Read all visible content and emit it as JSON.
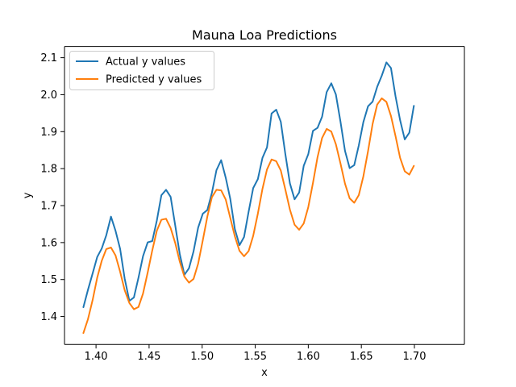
{
  "chart_data": {
    "type": "line",
    "title": "Mauna Loa Predictions",
    "xlabel": "x",
    "ylabel": "y",
    "xlim": [
      1.3703,
      1.7471
    ],
    "ylim": [
      1.3245,
      2.1305
    ],
    "xticks": [
      1.4,
      1.45,
      1.5,
      1.55,
      1.6,
      1.65,
      1.7
    ],
    "xtick_labels": [
      "1.40",
      "1.45",
      "1.50",
      "1.55",
      "1.60",
      "1.65",
      "1.70"
    ],
    "yticks": [
      1.4,
      1.5,
      1.6,
      1.7,
      1.8,
      1.9,
      2.0,
      2.1
    ],
    "ytick_labels": [
      "1.4",
      "1.5",
      "1.6",
      "1.7",
      "1.8",
      "1.9",
      "2.0",
      "2.1"
    ],
    "legend_position": "upper-left",
    "grid": false,
    "colors": {
      "actual": "#1f77b4",
      "predicted": "#ff7f0e"
    },
    "series": [
      {
        "name": "Actual y values",
        "color": "#1f77b4",
        "points": [
          [
            1.3881,
            1.4253
          ],
          [
            1.3924,
            1.472
          ],
          [
            1.3968,
            1.5164
          ],
          [
            1.4011,
            1.5608
          ],
          [
            1.4054,
            1.5841
          ],
          [
            1.4097,
            1.6201
          ],
          [
            1.4141,
            1.6702
          ],
          [
            1.4184,
            1.6317
          ],
          [
            1.4227,
            1.583
          ],
          [
            1.427,
            1.5026
          ],
          [
            1.4314,
            1.4424
          ],
          [
            1.4357,
            1.4515
          ],
          [
            1.44,
            1.505
          ],
          [
            1.4443,
            1.5634
          ],
          [
            1.4487,
            1.6006
          ],
          [
            1.453,
            1.6041
          ],
          [
            1.4573,
            1.6596
          ],
          [
            1.4616,
            1.7281
          ],
          [
            1.466,
            1.7427
          ],
          [
            1.4703,
            1.7236
          ],
          [
            1.4746,
            1.6468
          ],
          [
            1.4789,
            1.569
          ],
          [
            1.4833,
            1.5129
          ],
          [
            1.4876,
            1.5306
          ],
          [
            1.4919,
            1.5763
          ],
          [
            1.4962,
            1.6402
          ],
          [
            1.5006,
            1.6781
          ],
          [
            1.5049,
            1.6881
          ],
          [
            1.5092,
            1.7347
          ],
          [
            1.5135,
            1.796
          ],
          [
            1.5179,
            1.8229
          ],
          [
            1.5222,
            1.7756
          ],
          [
            1.5265,
            1.7183
          ],
          [
            1.5308,
            1.6366
          ],
          [
            1.5352,
            1.5929
          ],
          [
            1.5395,
            1.6153
          ],
          [
            1.5438,
            1.6838
          ],
          [
            1.5481,
            1.7475
          ],
          [
            1.5525,
            1.7717
          ],
          [
            1.5568,
            1.8289
          ],
          [
            1.5611,
            1.8574
          ],
          [
            1.5654,
            1.9492
          ],
          [
            1.5698,
            1.9594
          ],
          [
            1.5741,
            1.9267
          ],
          [
            1.5784,
            1.839
          ],
          [
            1.5827,
            1.7602
          ],
          [
            1.5871,
            1.717
          ],
          [
            1.5914,
            1.7352
          ],
          [
            1.5957,
            1.8076
          ],
          [
            1.6,
            1.8392
          ],
          [
            1.6044,
            1.9021
          ],
          [
            1.6087,
            1.9103
          ],
          [
            1.613,
            1.9404
          ],
          [
            1.6173,
            2.0068
          ],
          [
            1.6217,
            2.0308
          ],
          [
            1.626,
            2.0006
          ],
          [
            1.6303,
            1.9278
          ],
          [
            1.6346,
            1.848
          ],
          [
            1.639,
            1.8013
          ],
          [
            1.6433,
            1.8094
          ],
          [
            1.6476,
            1.8629
          ],
          [
            1.6519,
            1.9258
          ],
          [
            1.6563,
            1.9687
          ],
          [
            1.6606,
            1.9811
          ],
          [
            1.6649,
            2.0211
          ],
          [
            1.6692,
            2.0511
          ],
          [
            1.6736,
            2.0873
          ],
          [
            1.6779,
            2.0722
          ],
          [
            1.6822,
            1.9956
          ],
          [
            1.6865,
            1.9314
          ],
          [
            1.6909,
            1.879
          ],
          [
            1.6952,
            1.8973
          ],
          [
            1.6995,
            1.97
          ]
        ]
      },
      {
        "name": "Predicted y values",
        "color": "#ff7f0e",
        "points": [
          [
            1.3881,
            1.3553
          ],
          [
            1.3924,
            1.3927
          ],
          [
            1.3968,
            1.4445
          ],
          [
            1.4011,
            1.5048
          ],
          [
            1.4054,
            1.5508
          ],
          [
            1.4097,
            1.5825
          ],
          [
            1.4141,
            1.5866
          ],
          [
            1.4184,
            1.5651
          ],
          [
            1.4227,
            1.5213
          ],
          [
            1.427,
            1.4713
          ],
          [
            1.4314,
            1.4366
          ],
          [
            1.4357,
            1.4197
          ],
          [
            1.44,
            1.4258
          ],
          [
            1.4443,
            1.4623
          ],
          [
            1.4487,
            1.5193
          ],
          [
            1.453,
            1.5788
          ],
          [
            1.4573,
            1.6321
          ],
          [
            1.4616,
            1.6617
          ],
          [
            1.466,
            1.6645
          ],
          [
            1.4703,
            1.6393
          ],
          [
            1.4746,
            1.5991
          ],
          [
            1.4789,
            1.5485
          ],
          [
            1.4833,
            1.5078
          ],
          [
            1.4876,
            1.4916
          ],
          [
            1.4919,
            1.5017
          ],
          [
            1.4962,
            1.5427
          ],
          [
            1.5006,
            1.6061
          ],
          [
            1.5049,
            1.6705
          ],
          [
            1.5092,
            1.7228
          ],
          [
            1.5135,
            1.7428
          ],
          [
            1.5179,
            1.7413
          ],
          [
            1.5222,
            1.7166
          ],
          [
            1.5265,
            1.6667
          ],
          [
            1.5308,
            1.617
          ],
          [
            1.5352,
            1.5776
          ],
          [
            1.5395,
            1.5629
          ],
          [
            1.5438,
            1.5771
          ],
          [
            1.5481,
            1.6184
          ],
          [
            1.5525,
            1.6785
          ],
          [
            1.5568,
            1.7448
          ],
          [
            1.5611,
            1.7978
          ],
          [
            1.5654,
            1.8247
          ],
          [
            1.5698,
            1.82
          ],
          [
            1.5741,
            1.795
          ],
          [
            1.5784,
            1.7433
          ],
          [
            1.5827,
            1.6891
          ],
          [
            1.5871,
            1.6482
          ],
          [
            1.5914,
            1.6347
          ],
          [
            1.5957,
            1.6517
          ],
          [
            1.6,
            1.696
          ],
          [
            1.6044,
            1.7611
          ],
          [
            1.6087,
            1.8307
          ],
          [
            1.613,
            1.8829
          ],
          [
            1.6173,
            1.9074
          ],
          [
            1.6217,
            1.9003
          ],
          [
            1.626,
            1.8659
          ],
          [
            1.6303,
            1.8145
          ],
          [
            1.6346,
            1.7593
          ],
          [
            1.639,
            1.7196
          ],
          [
            1.6433,
            1.7077
          ],
          [
            1.6476,
            1.7283
          ],
          [
            1.6519,
            1.7791
          ],
          [
            1.6563,
            1.8473
          ],
          [
            1.6606,
            1.9208
          ],
          [
            1.6649,
            1.9732
          ],
          [
            1.6692,
            1.9901
          ],
          [
            1.6736,
            1.9806
          ],
          [
            1.6779,
            1.9426
          ],
          [
            1.6822,
            1.888
          ],
          [
            1.6865,
            1.8294
          ],
          [
            1.6909,
            1.7929
          ],
          [
            1.6952,
            1.7838
          ],
          [
            1.6995,
            1.8075
          ]
        ]
      }
    ]
  }
}
